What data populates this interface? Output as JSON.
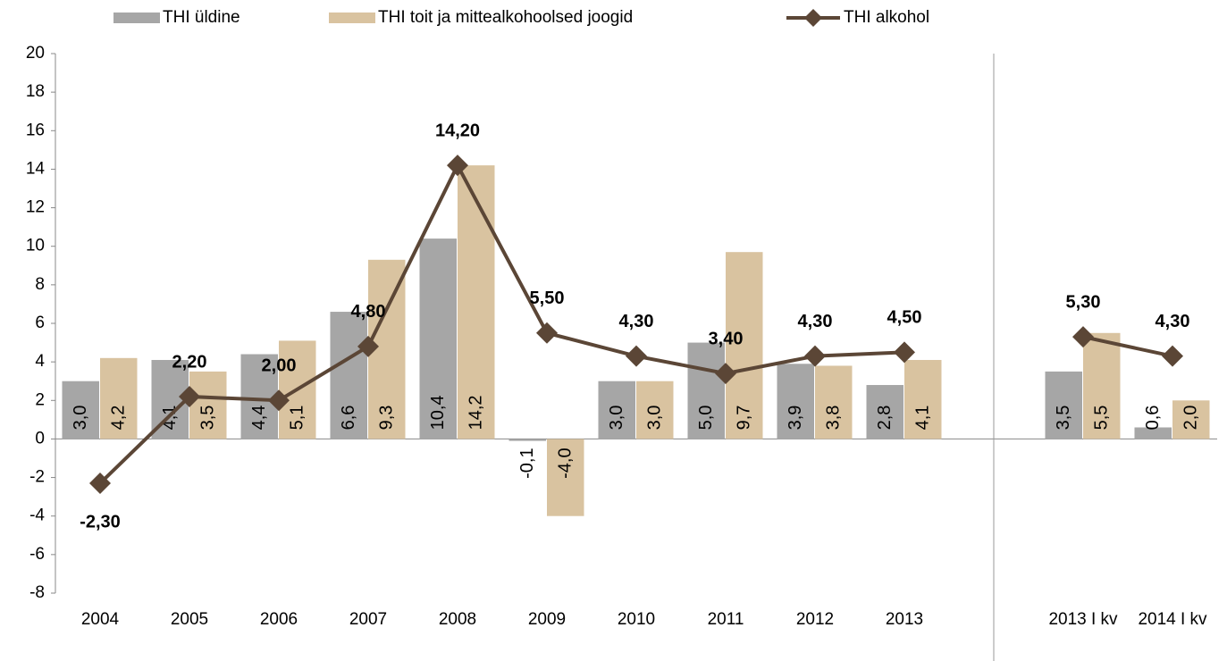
{
  "chart_data": {
    "type": "bar",
    "categories": [
      "2004",
      "2005",
      "2006",
      "2007",
      "2008",
      "2009",
      "2010",
      "2011",
      "2012",
      "2013",
      null,
      "2013 I kv",
      "2014 I kv"
    ],
    "series": [
      {
        "name": "THI üldine",
        "color": "#a6a6a6",
        "type": "bar",
        "values": [
          3.0,
          4.1,
          4.4,
          6.6,
          10.4,
          -0.1,
          3.0,
          5.0,
          3.9,
          2.8,
          null,
          3.5,
          0.6
        ],
        "value_labels": [
          "3,0",
          "4,1",
          "4,4",
          "6,6",
          "10,4",
          "-0,1",
          "3,0",
          "5,0",
          "3,9",
          "2,8",
          null,
          "3,5",
          "0,6"
        ]
      },
      {
        "name": "THI toit ja mittealkohoolsed joogid",
        "color": "#d9c3a0",
        "type": "bar",
        "values": [
          4.2,
          3.5,
          5.1,
          9.3,
          14.2,
          -4.0,
          3.0,
          9.7,
          3.8,
          4.1,
          null,
          5.5,
          2.0
        ],
        "value_labels": [
          "4,2",
          "3,5",
          "5,1",
          "9,3",
          "14,2",
          "-4,0",
          "3,0",
          "9,7",
          "3,8",
          "4,1",
          null,
          "5,5",
          "2,0"
        ]
      },
      {
        "name": "THI alkohol",
        "color": "#5b4636",
        "type": "line",
        "values": [
          -2.3,
          2.2,
          2.0,
          4.8,
          14.2,
          5.5,
          4.3,
          3.4,
          4.3,
          4.5,
          null,
          5.3,
          4.3
        ],
        "value_labels": [
          "-2,30",
          "2,20",
          "2,00",
          "4,80",
          "14,20",
          "5,50",
          "4,30",
          "3,40",
          "4,30",
          "4,50",
          null,
          "5,30",
          "4,30"
        ]
      }
    ],
    "ylim": [
      -8,
      20
    ],
    "yticks": [
      -8,
      -6,
      -4,
      -2,
      0,
      2,
      4,
      6,
      8,
      10,
      12,
      14,
      16,
      18,
      20
    ],
    "legend": "top",
    "negative_label_color": "#ff0000"
  }
}
